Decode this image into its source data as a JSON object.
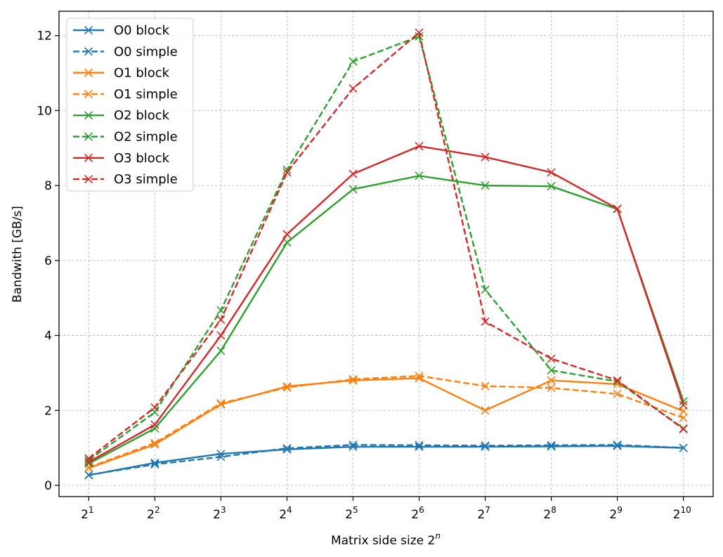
{
  "chart_data": {
    "type": "line",
    "xlabel": "Matrix side size 2",
    "xlabel_superscript": "n",
    "ylabel": "Bandwith [GB/s]",
    "x": [
      1,
      2,
      3,
      4,
      5,
      6,
      7,
      8,
      9,
      10
    ],
    "x_tick_labels": [
      {
        "base": "2",
        "exp": "1"
      },
      {
        "base": "2",
        "exp": "2"
      },
      {
        "base": "2",
        "exp": "3"
      },
      {
        "base": "2",
        "exp": "4"
      },
      {
        "base": "2",
        "exp": "5"
      },
      {
        "base": "2",
        "exp": "6"
      },
      {
        "base": "2",
        "exp": "7"
      },
      {
        "base": "2",
        "exp": "8"
      },
      {
        "base": "2",
        "exp": "9"
      },
      {
        "base": "2",
        "exp": "10"
      }
    ],
    "xlim": [
      0.55,
      10.45
    ],
    "ylim": [
      -0.3,
      12.65
    ],
    "y_ticks": [
      0,
      2,
      4,
      6,
      8,
      10,
      12
    ],
    "grid": true,
    "legend_position": "upper-left",
    "series": [
      {
        "name": "O0 block",
        "color": "#1f77b4",
        "dash": "solid",
        "values": [
          0.27,
          0.6,
          0.84,
          0.96,
          1.03,
          1.03,
          1.03,
          1.04,
          1.05,
          1.0
        ]
      },
      {
        "name": "O0 simple",
        "color": "#1f77b4",
        "dash": "dashed",
        "values": [
          0.28,
          0.56,
          0.76,
          0.99,
          1.08,
          1.07,
          1.06,
          1.07,
          1.08,
          1.0
        ]
      },
      {
        "name": "O1 block",
        "color": "#ff7f0e",
        "dash": "solid",
        "values": [
          0.46,
          1.09,
          2.16,
          2.64,
          2.8,
          2.86,
          2.0,
          2.8,
          2.7,
          1.98
        ]
      },
      {
        "name": "O1 simple",
        "color": "#ff7f0e",
        "dash": "dashed",
        "values": [
          0.48,
          1.13,
          2.19,
          2.61,
          2.83,
          2.92,
          2.65,
          2.6,
          2.44,
          1.8
        ]
      },
      {
        "name": "O2 block",
        "color": "#2ca02c",
        "dash": "solid",
        "values": [
          0.58,
          1.52,
          3.59,
          6.48,
          7.9,
          8.26,
          8.0,
          7.98,
          7.37,
          2.24
        ]
      },
      {
        "name": "O2 simple",
        "color": "#2ca02c",
        "dash": "dashed",
        "values": [
          0.67,
          1.95,
          4.67,
          8.42,
          11.31,
          11.98,
          5.22,
          3.07,
          2.77,
          1.52
        ]
      },
      {
        "name": "O3 block",
        "color": "#d62728",
        "dash": "solid",
        "values": [
          0.62,
          1.62,
          4.0,
          6.7,
          8.31,
          9.05,
          8.76,
          8.35,
          7.38,
          2.14
        ]
      },
      {
        "name": "O3 simple",
        "color": "#d62728",
        "dash": "dashed",
        "values": [
          0.72,
          2.08,
          4.42,
          8.35,
          10.59,
          12.08,
          4.37,
          3.38,
          2.8,
          1.5
        ]
      }
    ]
  }
}
